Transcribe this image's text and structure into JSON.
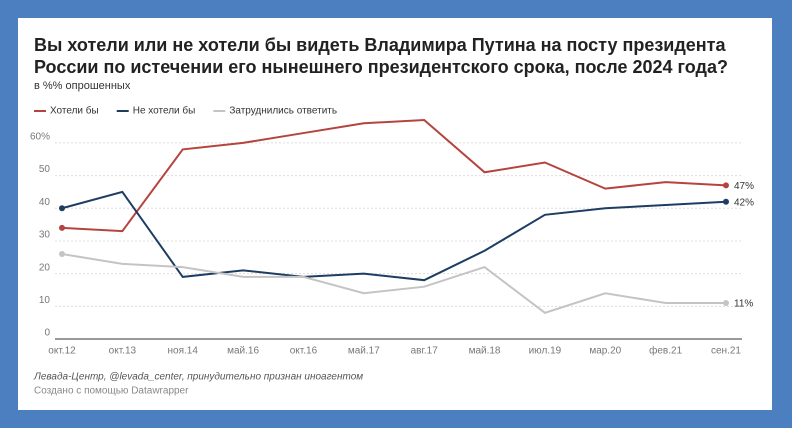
{
  "chart_data": {
    "type": "line",
    "title": "Вы хотели или не хотели бы видеть Владимира Путина на посту президента России по истечении его нынешнего президентского срока, после 2024 года?",
    "subtitle": "в %% опрошенных",
    "categories": [
      "окт.12",
      "окт.13",
      "ноя.14",
      "май.16",
      "окт.16",
      "май.17",
      "авг.17",
      "май.18",
      "июл.19",
      "мар.20",
      "фев.21",
      "сен.21"
    ],
    "series": [
      {
        "name": "Хотели бы",
        "color": "#b5443f",
        "values": [
          34,
          33,
          58,
          60,
          63,
          66,
          67,
          51,
          54,
          46,
          48,
          47
        ],
        "value_labels": [
          null,
          null,
          null,
          null,
          null,
          null,
          null,
          null,
          null,
          null,
          null,
          "47%"
        ]
      },
      {
        "name": "Не хотели бы",
        "color": "#1d3d63",
        "values": [
          40,
          45,
          19,
          21,
          19,
          20,
          18,
          27,
          38,
          40,
          41,
          42
        ],
        "value_labels": [
          null,
          null,
          null,
          null,
          null,
          null,
          null,
          null,
          null,
          null,
          null,
          "42%"
        ]
      },
      {
        "name": "Затруднились ответить",
        "color": "#c4c4c4",
        "values": [
          26,
          23,
          22,
          19,
          19,
          14,
          16,
          22,
          8,
          14,
          11,
          11
        ],
        "value_labels": [
          null,
          null,
          null,
          null,
          null,
          null,
          null,
          null,
          null,
          null,
          null,
          "11%"
        ]
      }
    ],
    "ylim": [
      0,
      67
    ],
    "yticks": [
      0,
      10,
      20,
      30,
      40,
      50,
      {
        "value": 60,
        "label": "60%"
      }
    ],
    "grid": true,
    "legend": "top",
    "source": "Левада-Центр, @levada_center, принудительно признан иноагентом",
    "credit": "Создано с помощью Datawrapper"
  }
}
